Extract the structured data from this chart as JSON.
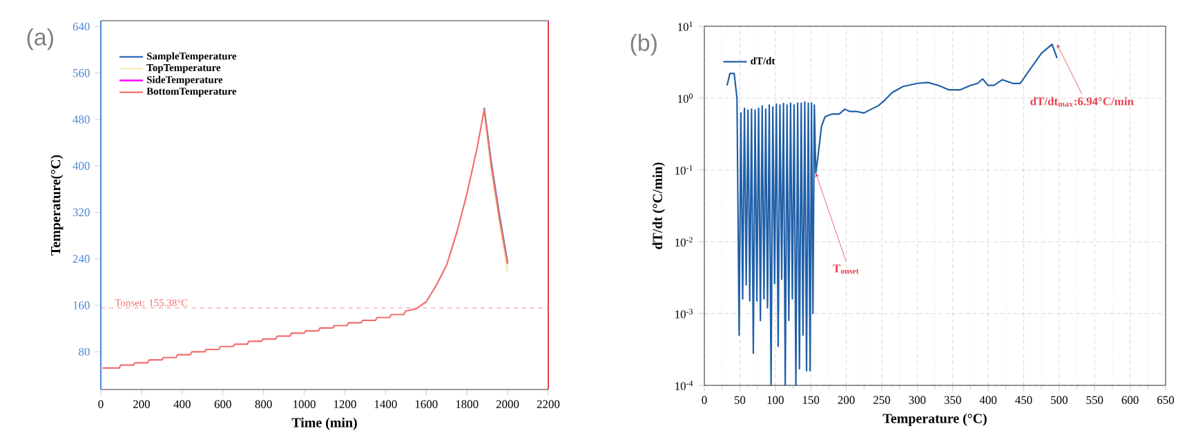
{
  "chart_data": [
    {
      "type": "line",
      "title": "(a)",
      "xlabel": "Time (min)",
      "ylabel": "Temperature(°C)",
      "xlim": [
        0,
        2200
      ],
      "xticks": [
        0,
        200,
        400,
        600,
        800,
        1000,
        1200,
        1400,
        1600,
        1800,
        2000,
        2200
      ],
      "ylim": [
        15,
        650
      ],
      "yticks": [
        80,
        160,
        240,
        320,
        400,
        480,
        560,
        640
      ],
      "x": [
        8,
        90,
        98,
        160,
        168,
        230,
        238,
        300,
        308,
        370,
        378,
        440,
        448,
        510,
        518,
        580,
        588,
        650,
        658,
        720,
        728,
        790,
        798,
        860,
        868,
        930,
        938,
        1000,
        1008,
        1070,
        1078,
        1140,
        1148,
        1210,
        1218,
        1280,
        1288,
        1350,
        1358,
        1420,
        1428,
        1490,
        1498,
        1550,
        1600,
        1650,
        1700,
        1750,
        1800,
        1850,
        1885,
        1920,
        1960,
        2000
      ],
      "legend": "top left",
      "series": [
        {
          "name": "SampleTemperature",
          "color": "#2e66b8",
          "values": [
            null,
            null,
            null,
            null,
            null,
            null,
            null,
            null,
            null,
            null,
            null,
            null,
            null,
            null,
            null,
            null,
            null,
            null,
            null,
            null,
            null,
            null,
            null,
            null,
            null,
            null,
            null,
            null,
            null,
            null,
            null,
            null,
            null,
            null,
            null,
            null,
            null,
            null,
            null,
            null,
            null,
            null,
            null,
            null,
            null,
            null,
            null,
            null,
            null,
            null,
            500,
            405,
            315,
            234
          ]
        },
        {
          "name": "TopTemperature",
          "color": "#f5eab0",
          "values": [
            null,
            null,
            null,
            null,
            null,
            null,
            null,
            null,
            null,
            null,
            null,
            null,
            null,
            null,
            null,
            null,
            null,
            null,
            null,
            null,
            null,
            null,
            null,
            null,
            null,
            null,
            null,
            null,
            null,
            null,
            null,
            null,
            null,
            null,
            null,
            null,
            null,
            null,
            null,
            null,
            null,
            null,
            null,
            null,
            null,
            null,
            null,
            null,
            null,
            null,
            497,
            390,
            300,
            217
          ]
        },
        {
          "name": "SideTemperature",
          "color": "#ff00ff",
          "values": [
            null,
            null,
            null,
            null,
            null,
            null,
            null,
            null,
            null,
            null,
            null,
            null,
            null,
            null,
            null,
            null,
            null,
            null,
            null,
            null,
            null,
            null,
            null,
            null,
            null,
            null,
            null,
            null,
            null,
            null,
            null,
            null,
            null,
            null,
            null,
            null,
            null,
            null,
            null,
            null,
            null,
            null,
            null,
            null,
            null,
            null,
            null,
            null,
            null,
            null,
            null,
            null,
            null,
            null
          ]
        },
        {
          "name": "BottomTemperature",
          "color": "#f26d6d",
          "values": [
            52,
            52,
            57,
            57,
            61,
            61,
            66,
            66,
            70,
            70,
            75,
            75,
            80,
            80,
            84,
            84,
            89,
            89,
            93,
            93,
            98,
            98,
            102,
            102,
            107,
            107,
            112,
            112,
            116,
            116,
            121,
            121,
            125,
            125,
            130,
            130,
            134,
            134,
            139,
            139,
            144,
            144,
            150,
            154,
            166,
            195,
            229,
            285,
            352,
            431,
            497,
            400,
            310,
            231
          ]
        }
      ],
      "ref_lines": [
        {
          "axis": "y",
          "value": 155.38,
          "label": "Tonset: 155.38°C",
          "color": "#f26d6d",
          "line_style": "dashed"
        }
      ]
    },
    {
      "type": "line",
      "title": "(b)",
      "xlabel": "Temperature (°C)",
      "ylabel": "dT/dt (°C/min)",
      "log": "y",
      "grid": true,
      "legend": "top left",
      "xlim": [
        0,
        650
      ],
      "xticks": [
        0,
        50,
        100,
        150,
        200,
        250,
        300,
        350,
        400,
        450,
        500,
        550,
        600,
        650
      ],
      "ylim": [
        0.0001,
        10
      ],
      "yticks": [
        {
          "value": 0.0001,
          "label": "10$^{-4}$"
        },
        {
          "value": 0.001,
          "label": "10$^{-3}$"
        },
        {
          "value": 0.01,
          "label": "10$^{-2}$"
        },
        {
          "value": 0.1,
          "label": "10$^{-1}$"
        },
        {
          "value": 1,
          "label": "10$^{0}$"
        },
        {
          "value": 10,
          "label": "10$^{1}$"
        }
      ],
      "x": [
        32,
        36,
        42,
        46,
        49,
        51.5,
        54,
        56.5,
        59,
        61.5,
        64,
        66.5,
        69,
        71.5,
        74,
        76.5,
        79,
        81.5,
        84,
        86.5,
        89,
        91.5,
        94,
        96.5,
        99,
        101.5,
        104,
        106.5,
        109,
        111.5,
        114,
        116.5,
        119,
        121.5,
        124,
        126.5,
        129,
        131.5,
        134,
        136.5,
        139,
        141.5,
        144,
        146.5,
        149,
        151,
        153,
        155,
        157,
        160,
        165,
        170,
        180,
        190,
        198,
        205,
        215,
        225,
        235,
        245,
        255,
        265,
        280,
        300,
        315,
        330,
        345,
        360,
        375,
        385,
        392,
        400,
        408,
        420,
        435,
        445,
        460,
        475,
        490,
        497
      ],
      "series": [
        {
          "name": "dT/dt",
          "color": "#1f5fa8",
          "values": [
            1.5,
            2.2,
            2.2,
            1.0,
            0.0005,
            0.62,
            0.0016,
            0.72,
            0.0025,
            0.68,
            0.0015,
            0.7,
            0.00028,
            0.68,
            0.0015,
            0.72,
            0.0008,
            0.78,
            0.0016,
            0.7,
            0.0012,
            0.8,
            0.0001,
            0.75,
            0.0026,
            0.82,
            0.00035,
            0.8,
            0.003,
            0.84,
            0.0001,
            0.8,
            0.0008,
            0.85,
            0.0016,
            0.8,
            0.0001,
            0.85,
            0.00017,
            0.85,
            0.0005,
            0.88,
            0.00016,
            0.85,
            0.00016,
            0.85,
            0.001,
            0.8,
            0.09,
            0.15,
            0.4,
            0.55,
            0.6,
            0.6,
            0.7,
            0.65,
            0.65,
            0.62,
            0.7,
            0.78,
            0.95,
            1.2,
            1.45,
            1.6,
            1.65,
            1.5,
            1.3,
            1.3,
            1.5,
            1.6,
            1.85,
            1.5,
            1.5,
            1.8,
            1.6,
            1.6,
            2.6,
            4.2,
            5.6,
            3.6
          ]
        }
      ],
      "annotations": [
        {
          "text": "T$_{onset}$",
          "x": 157,
          "y": 0.09
        },
        {
          "text": "dT/dt$_{max}$:6.94°C/min",
          "x": 497,
          "y": 5.6
        }
      ]
    }
  ]
}
